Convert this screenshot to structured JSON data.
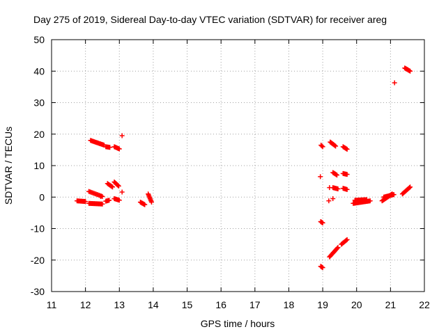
{
  "chart_data": {
    "type": "scatter",
    "title": "Day 275 of 2019, Sidereal Day-to-day VTEC variation (SDTVAR) for receiver areg",
    "xlabel": "GPS time / hours",
    "ylabel": "SDTVAR / TECUs",
    "xlim": [
      11,
      22
    ],
    "ylim": [
      -30,
      50
    ],
    "xticks": [
      "11",
      "12",
      "13",
      "14",
      "15",
      "16",
      "17",
      "18",
      "19",
      "20",
      "21",
      "22"
    ],
    "yticks": [
      "-30",
      "-20",
      "-10",
      "0",
      "10",
      "20",
      "30",
      "40",
      "50"
    ],
    "grid": true,
    "marker": "+",
    "color": "#ff0000",
    "series": [
      {
        "name": "SDTVAR",
        "segments": [
          {
            "x0": 11.75,
            "x1": 12.0,
            "y0": -1.2,
            "y1": -1.4,
            "n": 12
          },
          {
            "x0": 12.1,
            "x1": 12.5,
            "y0": -2.0,
            "y1": -2.2,
            "n": 16
          },
          {
            "x0": 12.1,
            "x1": 12.5,
            "y0": 1.8,
            "y1": 0.2,
            "n": 14
          },
          {
            "x0": 12.6,
            "x1": 12.7,
            "y0": -1.3,
            "y1": -1.0,
            "n": 5
          },
          {
            "x0": 12.65,
            "x1": 12.8,
            "y0": 4.3,
            "y1": 3.2,
            "n": 7
          },
          {
            "x0": 12.85,
            "x1": 12.98,
            "y0": 4.8,
            "y1": 3.5,
            "n": 7
          },
          {
            "x0": 12.85,
            "x1": 13.0,
            "y0": -0.5,
            "y1": -1.0,
            "n": 7
          },
          {
            "x0": 12.15,
            "x1": 12.55,
            "y0": 18.0,
            "y1": 16.5,
            "n": 16
          },
          {
            "x0": 12.6,
            "x1": 12.72,
            "y0": 16.0,
            "y1": 15.8,
            "n": 6
          },
          {
            "x0": 12.85,
            "x1": 13.0,
            "y0": 16.0,
            "y1": 15.3,
            "n": 7
          },
          {
            "x0": 13.62,
            "x1": 13.75,
            "y0": -1.6,
            "y1": -2.4,
            "n": 7
          },
          {
            "x0": 13.85,
            "x1": 13.95,
            "y0": 1.0,
            "y1": -1.6,
            "n": 8
          },
          {
            "x0": 18.95,
            "x1": 19.0,
            "y0": 16.5,
            "y1": 16.0,
            "n": 3
          },
          {
            "x0": 19.22,
            "x1": 19.38,
            "y0": 17.5,
            "y1": 16.2,
            "n": 8
          },
          {
            "x0": 19.6,
            "x1": 19.72,
            "y0": 16.0,
            "y1": 15.2,
            "n": 6
          },
          {
            "x0": 19.3,
            "x1": 19.42,
            "y0": 7.8,
            "y1": 7.0,
            "n": 6
          },
          {
            "x0": 19.6,
            "x1": 19.72,
            "y0": 7.5,
            "y1": 7.2,
            "n": 6
          },
          {
            "x0": 19.3,
            "x1": 19.45,
            "y0": 3.0,
            "y1": 2.6,
            "n": 7
          },
          {
            "x0": 19.6,
            "x1": 19.72,
            "y0": 2.8,
            "y1": 2.4,
            "n": 6
          },
          {
            "x0": 18.94,
            "x1": 19.0,
            "y0": -7.8,
            "y1": -8.2,
            "n": 4
          },
          {
            "x0": 18.94,
            "x1": 19.0,
            "y0": -22.0,
            "y1": -22.4,
            "n": 4
          },
          {
            "x0": 19.2,
            "x1": 19.45,
            "y0": -19.0,
            "y1": -16.0,
            "n": 12
          },
          {
            "x0": 19.55,
            "x1": 19.72,
            "y0": -15.0,
            "y1": -13.5,
            "n": 8
          },
          {
            "x0": 19.9,
            "x1": 20.4,
            "y0": -2.0,
            "y1": -1.2,
            "n": 22
          },
          {
            "x0": 19.95,
            "x1": 20.3,
            "y0": -1.0,
            "y1": -0.8,
            "n": 14
          },
          {
            "x0": 20.75,
            "x1": 21.05,
            "y0": -1.2,
            "y1": 1.0,
            "n": 16
          },
          {
            "x0": 20.8,
            "x1": 21.1,
            "y0": 0.0,
            "y1": 0.8,
            "n": 14
          },
          {
            "x0": 21.35,
            "x1": 21.58,
            "y0": 1.0,
            "y1": 3.2,
            "n": 12
          },
          {
            "x0": 21.42,
            "x1": 21.58,
            "y0": 41.0,
            "y1": 40.0,
            "n": 8
          }
        ],
        "isolated": [
          [
            13.08,
            19.5
          ],
          [
            13.08,
            1.6
          ],
          [
            12.45,
            0.2
          ],
          [
            18.93,
            6.5
          ],
          [
            19.2,
            3.0
          ],
          [
            19.18,
            -1.2
          ],
          [
            19.3,
            -0.5
          ],
          [
            21.12,
            36.3
          ]
        ]
      }
    ]
  }
}
